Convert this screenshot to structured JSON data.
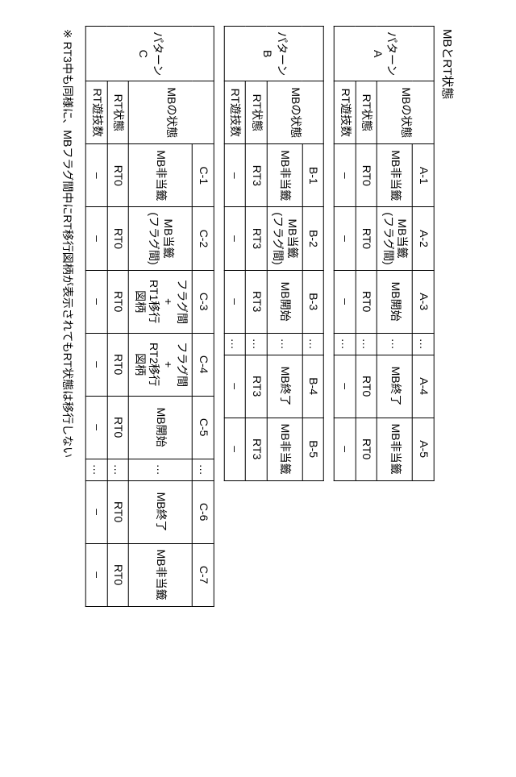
{
  "title": "MBとRT状態",
  "row_labels": {
    "mb_state": "MBの状態",
    "rt_state": "RT状態",
    "rt_games": "RT遊技数"
  },
  "patternA": {
    "name": "パターン\nA",
    "headers": [
      "A-1",
      "A-2",
      "A-3",
      "…",
      "A-4",
      "A-5"
    ],
    "mb": [
      "MB非当籤",
      "MB当籤\n(フラグ間)",
      "MB開始",
      "…",
      "MB終了",
      "MB非当籤"
    ],
    "rt": [
      "RT0",
      "RT0",
      "RT0",
      "…",
      "RT0",
      "RT0"
    ],
    "games": [
      "–",
      "–",
      "–",
      "…",
      "–",
      "–"
    ]
  },
  "patternB": {
    "name": "パターン\nB",
    "headers": [
      "B-1",
      "B-2",
      "B-3",
      "…",
      "B-4",
      "B-5"
    ],
    "mb": [
      "MB非当籤",
      "MB当籤\n(フラグ間)",
      "MB開始",
      "…",
      "MB終了",
      "MB非当籤"
    ],
    "rt": [
      "RT3",
      "RT3",
      "RT3",
      "…",
      "RT3",
      "RT3"
    ],
    "games": [
      "–",
      "–",
      "–",
      "…",
      "–",
      "–"
    ]
  },
  "patternC": {
    "name": "パターン\nC",
    "headers": [
      "C-1",
      "C-2",
      "C-3",
      "C-4",
      "C-5",
      "…",
      "C-6",
      "C-7"
    ],
    "mb": [
      "MB非当籤",
      "MB当籤\n(フラグ間)",
      "フラグ間\n+\nRT1移行\n図柄",
      "フラグ間\n+\nRT2移行\n図柄",
      "MB開始",
      "…",
      "MB終了",
      "MB非当籤"
    ],
    "rt": [
      "RT0",
      "RT0",
      "RT0",
      "RT0",
      "RT0",
      "…",
      "RT0",
      "RT0"
    ],
    "games": [
      "–",
      "–",
      "–",
      "–",
      "–",
      "…",
      "–",
      "–"
    ]
  },
  "footnote": "※ RT3中も同様に、MBフラグ間中にRT移行図柄が表示されてもRT状態は移行しない"
}
